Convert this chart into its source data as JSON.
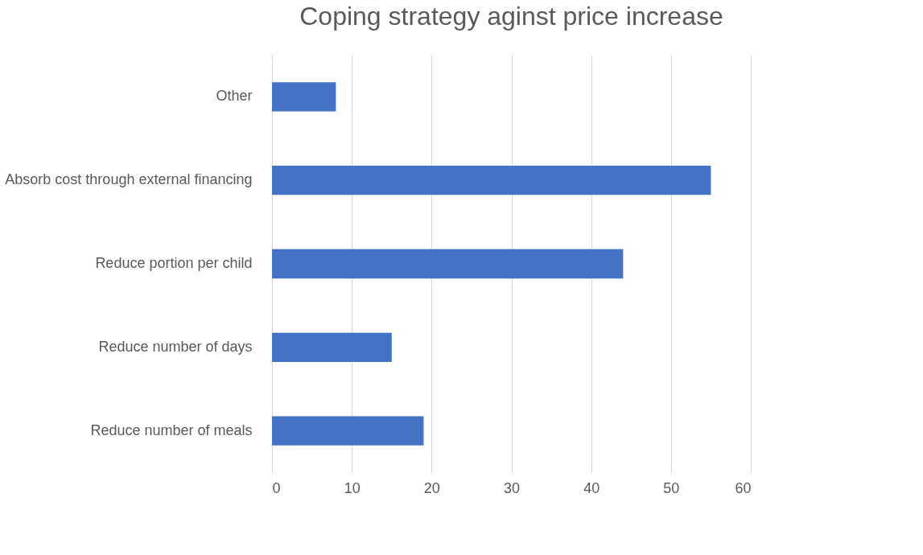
{
  "chart_data": {
    "type": "bar",
    "orientation": "horizontal",
    "title": "Coping strategy aginst price increase",
    "categories": [
      "Other",
      "Absorb cost through external financing",
      "Reduce portion per child",
      "Reduce number of days",
      "Reduce number of meals"
    ],
    "values": [
      8,
      55,
      44,
      15,
      19
    ],
    "color": "#4472c4",
    "xlim": [
      0,
      60
    ],
    "xticks": [
      0,
      10,
      20,
      30,
      40,
      50,
      60
    ],
    "grid": "x"
  }
}
